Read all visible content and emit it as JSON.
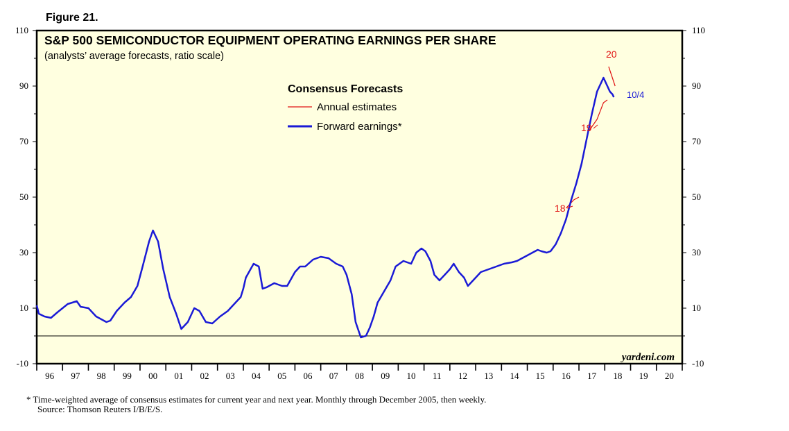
{
  "figure_label": "Figure 21.",
  "chart_data": {
    "type": "line",
    "title": "S&P 500 SEMICONDUCTOR EQUIPMENT OPERATING EARNINGS PER SHARE",
    "subtitle": "(analysts’ average forecasts, ratio scale)",
    "legend": {
      "title": "Consensus Forecasts",
      "placement": "top-center",
      "entries": [
        "Annual estimates",
        "Forward earnings*"
      ]
    },
    "ylim": [
      -10,
      110
    ],
    "y_ticks": [
      -10,
      10,
      30,
      50,
      70,
      90,
      110
    ],
    "x_ticks": [
      "96",
      "97",
      "98",
      "99",
      "00",
      "01",
      "02",
      "03",
      "04",
      "05",
      "06",
      "07",
      "08",
      "09",
      "10",
      "11",
      "12",
      "13",
      "14",
      "15",
      "16",
      "17",
      "18",
      "19",
      "20"
    ],
    "xlim": [
      1996,
      2021
    ],
    "zero_line": 0,
    "grid": false,
    "colors": {
      "forward": "#1a1ad6",
      "annual": "#e01010",
      "background": "#ffffe0"
    },
    "series": [
      {
        "name": "Forward earnings*",
        "x": [
          1996.0,
          1996.08,
          1996.3,
          1996.55,
          1996.8,
          1997.2,
          1997.55,
          1997.7,
          1998.0,
          1998.3,
          1998.7,
          1998.85,
          1999.1,
          1999.4,
          1999.65,
          1999.9,
          2000.1,
          2000.35,
          2000.5,
          2000.7,
          2000.9,
          2001.15,
          2001.4,
          2001.6,
          2001.85,
          2002.1,
          2002.3,
          2002.55,
          2002.8,
          2003.1,
          2003.4,
          2003.7,
          2003.9,
          2004.0,
          2004.1,
          2004.4,
          2004.6,
          2004.75,
          2004.9,
          2005.2,
          2005.5,
          2005.7,
          2006.0,
          2006.2,
          2006.4,
          2006.7,
          2007.0,
          2007.3,
          2007.6,
          2007.85,
          2008.0,
          2008.2,
          2008.35,
          2008.55,
          2008.75,
          2008.9,
          2009.05,
          2009.2,
          2009.45,
          2009.7,
          2009.9,
          2010.2,
          2010.5,
          2010.7,
          2010.9,
          2011.05,
          2011.25,
          2011.4,
          2011.6,
          2011.8,
          2012.0,
          2012.15,
          2012.35,
          2012.55,
          2012.7,
          2013.0,
          2013.2,
          2013.5,
          2013.8,
          2014.1,
          2014.4,
          2014.6,
          2014.8,
          2015.0,
          2015.2,
          2015.4,
          2015.55,
          2015.75,
          2015.9,
          2016.1,
          2016.3,
          2016.5,
          2016.7,
          2016.9,
          2017.1,
          2017.3,
          2017.5,
          2017.7,
          2017.85,
          2017.95,
          2018.0,
          2018.1,
          2018.2,
          2018.3,
          2018.35
        ],
        "values": [
          11,
          8,
          7,
          6.5,
          8.5,
          11.5,
          12.5,
          10.5,
          10,
          7,
          5,
          5.5,
          9,
          12,
          14,
          18,
          25,
          34,
          38,
          34,
          24,
          14,
          8,
          2.5,
          5,
          10,
          9,
          5,
          4.5,
          7,
          9,
          12,
          14,
          17,
          21,
          26,
          25,
          17,
          17.5,
          19,
          18,
          18,
          23,
          25,
          25,
          27.5,
          28.5,
          28,
          26,
          25,
          22,
          15,
          5,
          -0.5,
          0,
          3,
          7,
          12,
          16,
          20,
          25,
          27,
          26,
          30,
          31.5,
          30.5,
          27,
          22,
          20,
          22,
          24,
          26,
          23,
          21,
          18,
          21,
          23,
          24,
          25,
          26,
          26.5,
          27,
          28,
          29,
          30,
          31,
          30.5,
          30,
          30.5,
          33,
          37,
          42,
          49,
          55,
          62,
          71,
          80,
          88,
          91,
          93,
          92,
          90,
          88,
          87,
          86
        ]
      },
      {
        "name": "Annual estimates",
        "points": [
          {
            "label": "18",
            "x": [
              2016.5,
              2016.8,
              2017.0
            ],
            "values": [
              46,
              49,
              50
            ]
          },
          {
            "label": "19",
            "x": [
              2017.4,
              2017.7,
              2017.95,
              2018.1
            ],
            "values": [
              74,
              78,
              84,
              85
            ]
          },
          {
            "label": "20",
            "x": [
              2018.15,
              2018.4
            ],
            "values": [
              97,
              90
            ]
          }
        ]
      }
    ],
    "annotations": [
      "20",
      "19",
      "18",
      "10/4"
    ],
    "watermark": "yardeni.com"
  },
  "footnote": "* Time-weighted average of consensus estimates for current year and next year. Monthly through December 2005, then weekly.",
  "source": "Source: Thomson Reuters I/B/E/S."
}
